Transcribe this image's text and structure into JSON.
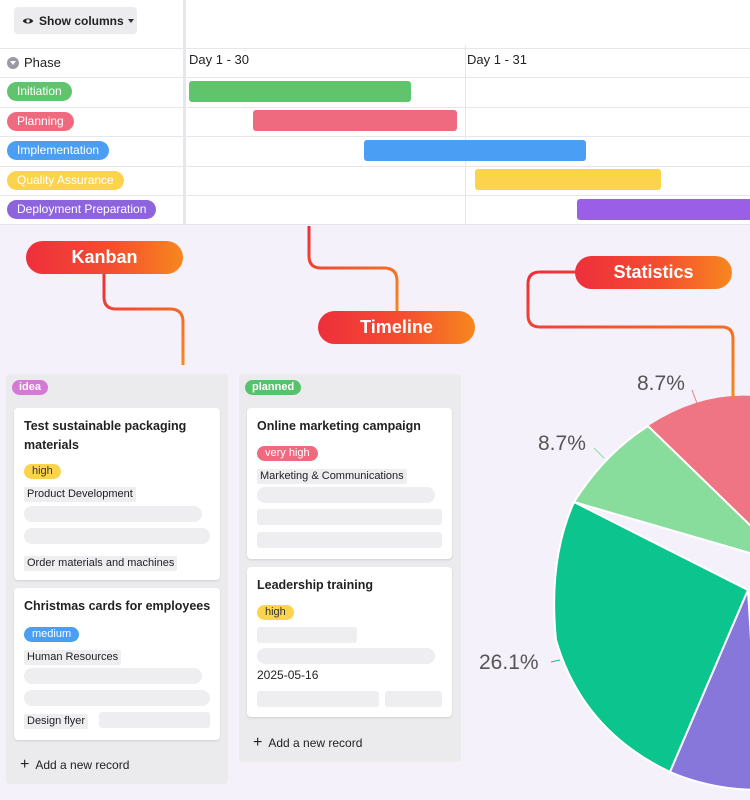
{
  "timeline": {
    "show_columns_label": "Show columns",
    "phase_header": "Phase",
    "day_labels": [
      "Day 1 - 30",
      "Day 1 - 31"
    ],
    "phases": [
      {
        "label": "Initiation",
        "color": "#5fc46c",
        "bar_color": "#5fc46c"
      },
      {
        "label": "Planning",
        "color": "#ef6a7e",
        "bar_color": "#ef6a7e"
      },
      {
        "label": "Implementation",
        "color": "#4a9ef3",
        "bar_color": "#4a9ef3"
      },
      {
        "label": "Quality Assurance",
        "color": "#fbd44c",
        "bar_color": "#fbd44c"
      },
      {
        "label": "Deployment Preparation",
        "color": "#8e64dc",
        "bar_color": "#9a5fe6"
      }
    ]
  },
  "callouts": {
    "kanban": "Kanban",
    "timeline": "Timeline",
    "statistics": "Statistics"
  },
  "kanban": {
    "columns": [
      {
        "tag": "idea",
        "tag_color": "#d778d6",
        "cards": [
          {
            "title": "Test sustainable packaging materials",
            "priority": "high",
            "department": "Product Development",
            "extra": "Order materials and machines"
          },
          {
            "title": "Christmas cards for employees",
            "priority": "medium",
            "department": "Human Resources",
            "extra": "Design flyer"
          }
        ],
        "add_label": "Add a new record"
      },
      {
        "tag": "planned",
        "tag_color": "#57c26c",
        "cards": [
          {
            "title": "Online marketing campaign",
            "priority": "very high",
            "department": "Marketing & Communications"
          },
          {
            "title": "Leadership training",
            "priority": "high",
            "date": "2025-05-16"
          }
        ],
        "add_label": "Add a new record"
      }
    ]
  },
  "pie": {
    "labels": [
      "8.7%",
      "8.7%",
      "26.1%"
    ],
    "colors": {
      "pink": "#ef7585",
      "light_green": "#88dd9c",
      "teal": "#0bc48e",
      "purple": "#8877db"
    }
  }
}
